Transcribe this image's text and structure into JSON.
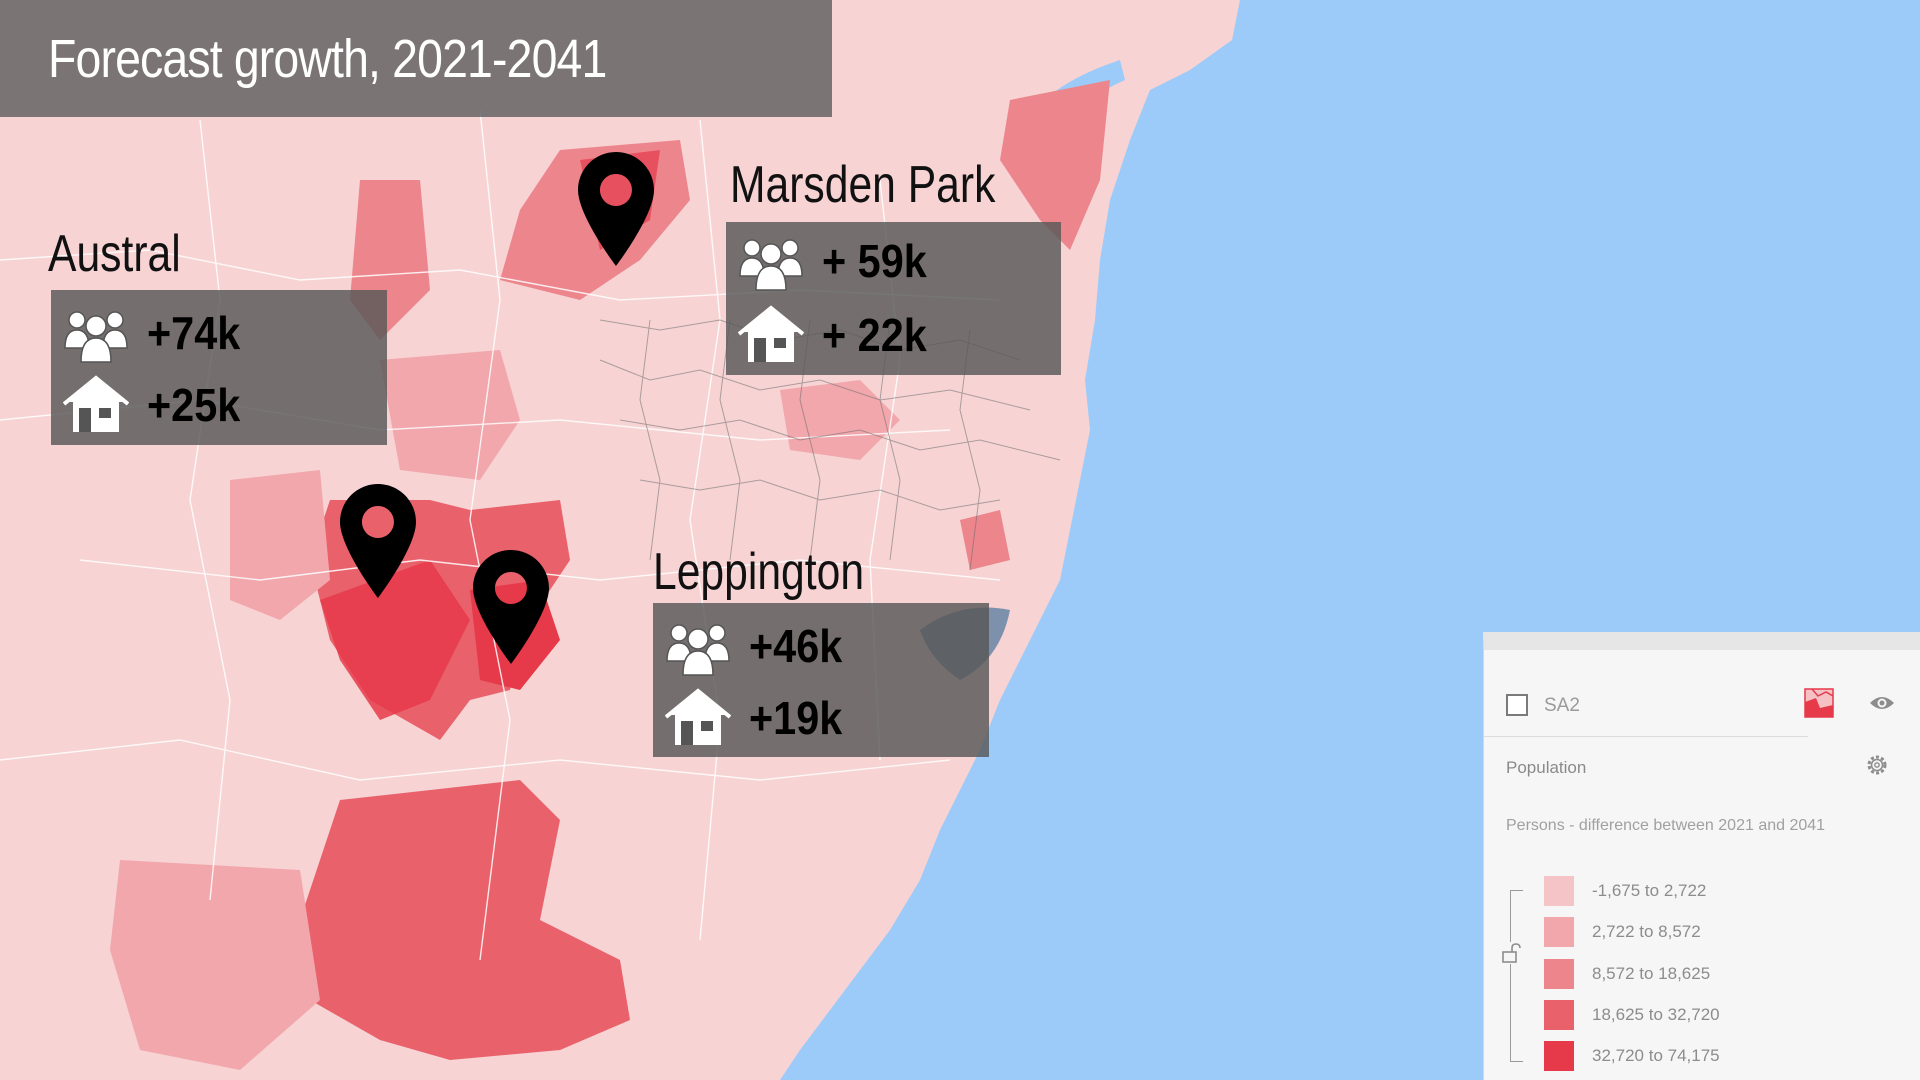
{
  "title": "Forecast growth, 2021-2041",
  "locations": [
    {
      "name": "Austral",
      "people": "+74k",
      "homes": "+25k"
    },
    {
      "name": "Marsden Park",
      "people": "+ 59k",
      "homes": "+ 22k"
    },
    {
      "name": "Leppington",
      "people": "+46k",
      "homes": "+19k"
    }
  ],
  "icons": {
    "people": "people-group-icon",
    "homes": "house-icon",
    "pin": "map-pin-icon"
  },
  "legend_panel": {
    "layer_name": "SA2",
    "variable": "Population",
    "description": "Persons - difference between 2021 and 2041",
    "classes": [
      {
        "label": "-1,675 to 2,722",
        "color": "#f5c4c6"
      },
      {
        "label": "2,722 to 8,572",
        "color": "#f1a7ac"
      },
      {
        "label": "8,572 to 18,625",
        "color": "#ec858c"
      },
      {
        "label": "18,625 to 32,720",
        "color": "#e9616b"
      },
      {
        "label": "32,720 to 74,175",
        "color": "#e6394a"
      }
    ]
  },
  "colors": {
    "ocean": "#9ccbf9",
    "land": "#f7d3d4",
    "accent": "#e6394a"
  }
}
